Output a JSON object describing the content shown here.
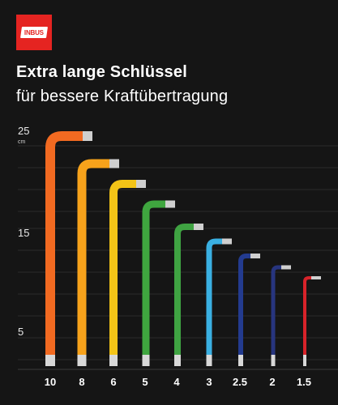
{
  "brand": {
    "logo_text": "INBUS",
    "logo_color": "#e52421"
  },
  "header": {
    "title": "Extra lange Schlüssel",
    "subtitle": "für bessere Kraftübertragung"
  },
  "axis": {
    "unit": "cm",
    "ticks": [
      "25",
      "15",
      "5"
    ]
  },
  "keys": [
    {
      "size": "10",
      "color": "#f26a21"
    },
    {
      "size": "8",
      "color": "#f7a21b"
    },
    {
      "size": "6",
      "color": "#f3c417"
    },
    {
      "size": "5",
      "color": "#3fa63f"
    },
    {
      "size": "4",
      "color": "#3fa342"
    },
    {
      "size": "3",
      "color": "#3ab0e2"
    },
    {
      "size": "2.5",
      "color": "#233b8f"
    },
    {
      "size": "2",
      "color": "#27357f"
    },
    {
      "size": "1.5",
      "color": "#d8232a"
    }
  ]
}
